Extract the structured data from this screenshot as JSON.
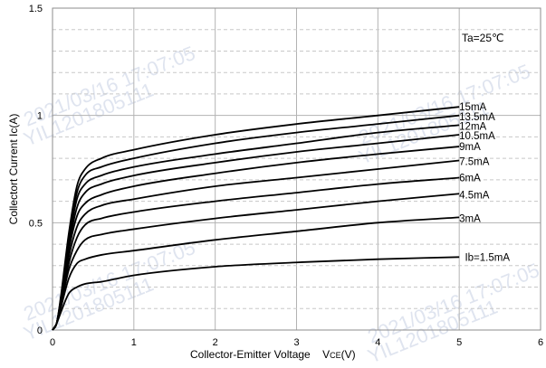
{
  "chart_data": {
    "type": "line",
    "title": "",
    "xlabel": "Collector-Emitter Voltage",
    "xlabel_symbol": "V",
    "xlabel_subscript": "CE",
    "xlabel_unit": "(V)",
    "ylabel": "Collectort Current  Ic(A)",
    "xlim": [
      0,
      6
    ],
    "ylim": [
      0,
      1.5
    ],
    "x_ticks": [
      "0",
      "1",
      "2",
      "3",
      "4",
      "5",
      "6"
    ],
    "y_ticks": [
      "0",
      "0.5",
      "1",
      "1.5"
    ],
    "grid": true,
    "annotation": "Ta=25℃",
    "watermarks": [
      "2021/03/16 17:07:05",
      "YIL1201805111"
    ],
    "series": [
      {
        "name": "15mA",
        "points": [
          [
            0,
            0
          ],
          [
            0.05,
            0.03
          ],
          [
            0.1,
            0.15
          ],
          [
            0.2,
            0.45
          ],
          [
            0.3,
            0.67
          ],
          [
            0.4,
            0.75
          ],
          [
            0.6,
            0.8
          ],
          [
            1,
            0.84
          ],
          [
            2,
            0.91
          ],
          [
            3,
            0.96
          ],
          [
            4,
            1.0
          ],
          [
            5,
            1.04
          ]
        ]
      },
      {
        "name": "13.5mA",
        "points": [
          [
            0,
            0
          ],
          [
            0.05,
            0.03
          ],
          [
            0.1,
            0.14
          ],
          [
            0.2,
            0.43
          ],
          [
            0.3,
            0.64
          ],
          [
            0.4,
            0.72
          ],
          [
            0.6,
            0.76
          ],
          [
            1,
            0.8
          ],
          [
            2,
            0.87
          ],
          [
            3,
            0.92
          ],
          [
            4,
            0.96
          ],
          [
            5,
            1.0
          ]
        ]
      },
      {
        "name": "12mA",
        "points": [
          [
            0,
            0
          ],
          [
            0.05,
            0.03
          ],
          [
            0.1,
            0.14
          ],
          [
            0.2,
            0.41
          ],
          [
            0.3,
            0.61
          ],
          [
            0.4,
            0.68
          ],
          [
            0.6,
            0.72
          ],
          [
            1,
            0.76
          ],
          [
            2,
            0.82
          ],
          [
            3,
            0.87
          ],
          [
            4,
            0.92
          ],
          [
            5,
            0.955
          ]
        ]
      },
      {
        "name": "10.5mA",
        "points": [
          [
            0,
            0
          ],
          [
            0.05,
            0.03
          ],
          [
            0.1,
            0.13
          ],
          [
            0.2,
            0.39
          ],
          [
            0.3,
            0.57
          ],
          [
            0.4,
            0.64
          ],
          [
            0.6,
            0.68
          ],
          [
            1,
            0.72
          ],
          [
            2,
            0.78
          ],
          [
            3,
            0.83
          ],
          [
            4,
            0.87
          ],
          [
            5,
            0.91
          ]
        ]
      },
      {
        "name": "9mA",
        "points": [
          [
            0,
            0
          ],
          [
            0.05,
            0.03
          ],
          [
            0.1,
            0.13
          ],
          [
            0.2,
            0.37
          ],
          [
            0.3,
            0.53
          ],
          [
            0.4,
            0.59
          ],
          [
            0.6,
            0.63
          ],
          [
            1,
            0.67
          ],
          [
            2,
            0.73
          ],
          [
            3,
            0.78
          ],
          [
            4,
            0.82
          ],
          [
            5,
            0.855
          ]
        ]
      },
      {
        "name": "7.5mA",
        "points": [
          [
            0,
            0
          ],
          [
            0.05,
            0.03
          ],
          [
            0.1,
            0.12
          ],
          [
            0.2,
            0.34
          ],
          [
            0.3,
            0.48
          ],
          [
            0.4,
            0.54
          ],
          [
            0.6,
            0.58
          ],
          [
            1,
            0.61
          ],
          [
            2,
            0.67
          ],
          [
            3,
            0.71
          ],
          [
            4,
            0.75
          ],
          [
            5,
            0.79
          ]
        ]
      },
      {
        "name": "6mA",
        "points": [
          [
            0,
            0
          ],
          [
            0.05,
            0.03
          ],
          [
            0.1,
            0.12
          ],
          [
            0.2,
            0.31
          ],
          [
            0.3,
            0.43
          ],
          [
            0.4,
            0.49
          ],
          [
            0.6,
            0.52
          ],
          [
            1,
            0.55
          ],
          [
            2,
            0.6
          ],
          [
            3,
            0.64
          ],
          [
            4,
            0.68
          ],
          [
            5,
            0.71
          ]
        ]
      },
      {
        "name": "4.5mA",
        "points": [
          [
            0,
            0
          ],
          [
            0.05,
            0.03
          ],
          [
            0.1,
            0.11
          ],
          [
            0.2,
            0.28
          ],
          [
            0.3,
            0.37
          ],
          [
            0.4,
            0.42
          ],
          [
            0.6,
            0.445
          ],
          [
            1,
            0.47
          ],
          [
            2,
            0.52
          ],
          [
            3,
            0.56
          ],
          [
            4,
            0.6
          ],
          [
            5,
            0.635
          ]
        ]
      },
      {
        "name": "3mA",
        "points": [
          [
            0,
            0
          ],
          [
            0.05,
            0.03
          ],
          [
            0.1,
            0.1
          ],
          [
            0.2,
            0.24
          ],
          [
            0.3,
            0.31
          ],
          [
            0.4,
            0.33
          ],
          [
            0.6,
            0.35
          ],
          [
            1,
            0.37
          ],
          [
            2,
            0.42
          ],
          [
            3,
            0.46
          ],
          [
            4,
            0.5
          ],
          [
            5,
            0.525
          ]
        ]
      },
      {
        "name": "Ib=1.5mA",
        "points": [
          [
            0,
            0
          ],
          [
            0.05,
            0.03
          ],
          [
            0.1,
            0.08
          ],
          [
            0.2,
            0.17
          ],
          [
            0.3,
            0.2
          ],
          [
            0.4,
            0.215
          ],
          [
            0.6,
            0.225
          ],
          [
            1,
            0.255
          ],
          [
            2,
            0.295
          ],
          [
            3,
            0.315
          ],
          [
            4,
            0.33
          ],
          [
            5,
            0.34
          ]
        ]
      }
    ],
    "label_y": [
      1.04,
      0.995,
      0.95,
      0.905,
      0.855,
      0.785,
      0.71,
      0.63,
      0.52,
      0.34
    ]
  }
}
